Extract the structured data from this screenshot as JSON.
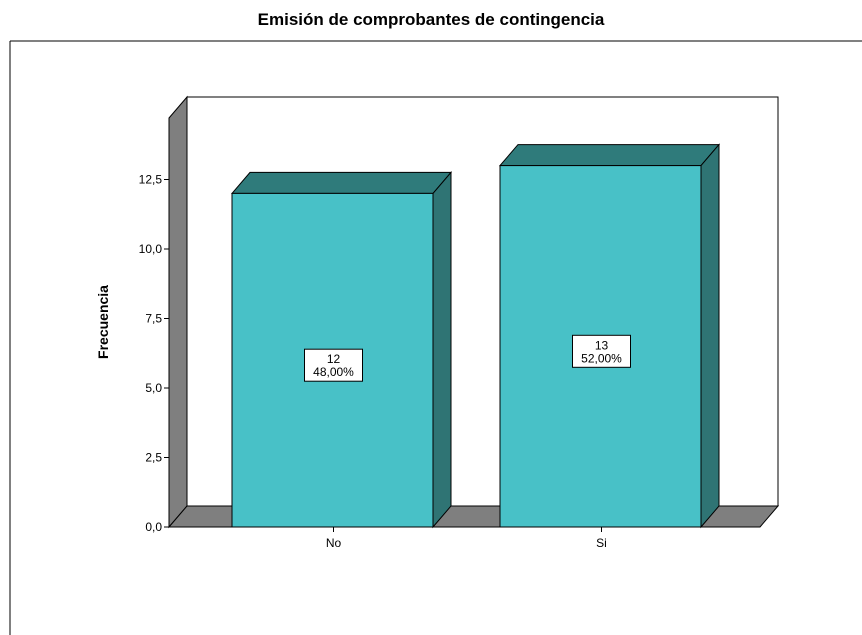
{
  "chart_data": {
    "type": "bar",
    "title": "Emisión de comprobantes de contingencia",
    "xlabel": "",
    "ylabel": "Frecuencia",
    "categories": [
      "No",
      "Si"
    ],
    "values": [
      12,
      13
    ],
    "data_labels": [
      {
        "count": "12",
        "percent": "48,00%"
      },
      {
        "count": "13",
        "percent": "52,00%"
      }
    ],
    "ylim": [
      0,
      15
    ],
    "yticks": [
      0,
      2.5,
      5,
      7.5,
      10,
      12.5
    ],
    "ytick_labels": [
      "0,0",
      "2,5",
      "5,0",
      "7,5",
      "10,0",
      "12,5"
    ],
    "grid": false,
    "three_d": true,
    "colors": {
      "bar_face": "#48c1c7",
      "bar_top": "#2f7b7b",
      "bar_side": "#2f7474",
      "floor": "#7f7f7f",
      "wall": "#7f7f7f",
      "edge": "#000000"
    }
  }
}
